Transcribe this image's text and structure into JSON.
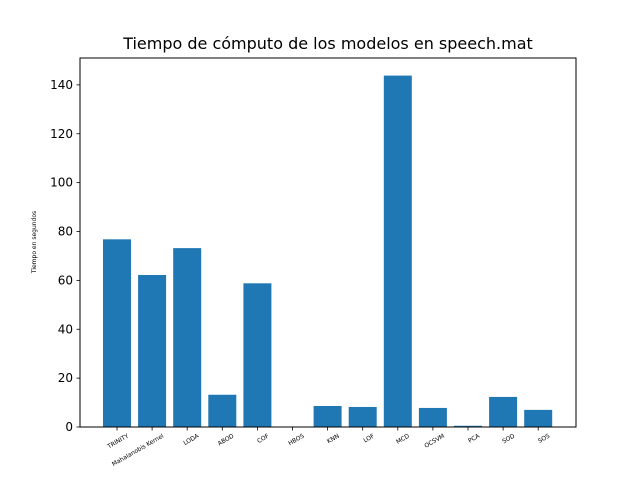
{
  "chart_data": {
    "type": "bar",
    "title": "Tiempo de cómputo de los modelos en speech.mat",
    "xlabel": "",
    "ylabel": "Tiempo en segundos",
    "categories": [
      "TRINITY",
      "Mahalanobis Kernel",
      "LODA",
      "ABOD",
      "COF",
      "HBOS",
      "KNN",
      "LOF",
      "MCD",
      "OCSVM",
      "PCA",
      "SOD",
      "SOS"
    ],
    "values": [
      76.8,
      62.2,
      73.2,
      13.2,
      58.8,
      0.1,
      8.6,
      8.2,
      143.8,
      7.8,
      0.5,
      12.3,
      7.0
    ],
    "ylim": [
      0,
      151
    ],
    "yticks": [
      0,
      20,
      40,
      60,
      80,
      100,
      120,
      140
    ],
    "grid": false,
    "bar_color": "#1f77b4"
  }
}
